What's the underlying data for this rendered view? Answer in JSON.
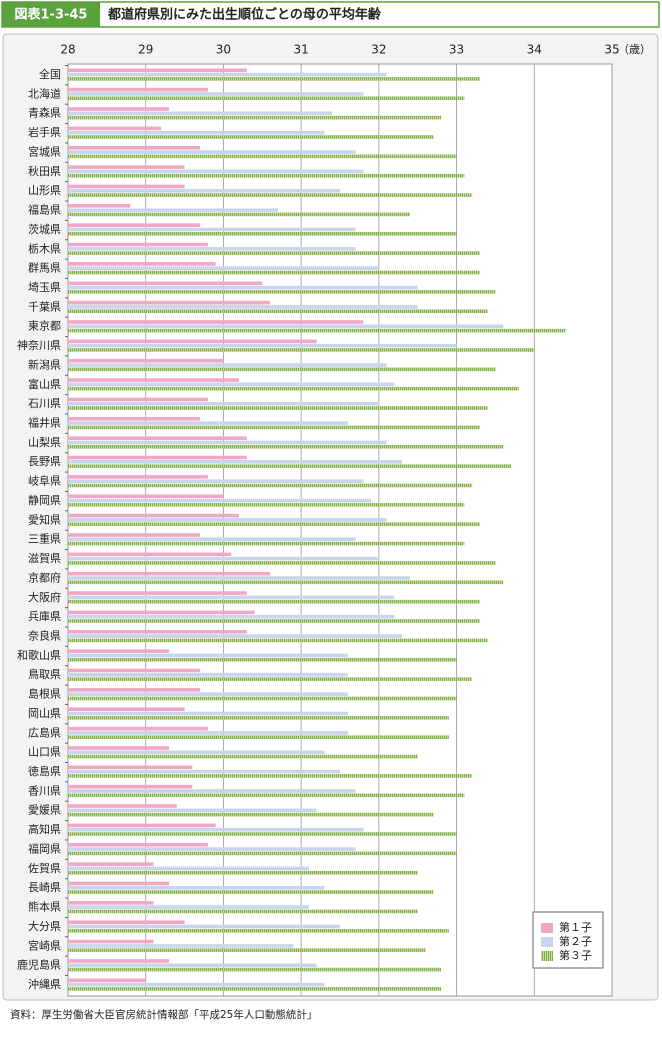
{
  "chart_data": {
    "type": "hbar",
    "figure_label": "図表1-3-45",
    "title": "都道府県別にみた出生順位ごとの母の平均年齢",
    "unit_label": "（歳）",
    "source": "資料：厚生労働省大臣官房統計情報部「平成25年人口動態統計」",
    "xlim": [
      28,
      35
    ],
    "xticks": [
      28,
      29,
      30,
      31,
      32,
      33,
      34,
      35
    ],
    "grid": true,
    "legend": "bottom-right",
    "categories": [
      "全国",
      "北海道",
      "青森県",
      "岩手県",
      "宮城県",
      "秋田県",
      "山形県",
      "福島県",
      "茨城県",
      "栃木県",
      "群馬県",
      "埼玉県",
      "千葉県",
      "東京都",
      "神奈川県",
      "新潟県",
      "富山県",
      "石川県",
      "福井県",
      "山梨県",
      "長野県",
      "岐阜県",
      "静岡県",
      "愛知県",
      "三重県",
      "滋賀県",
      "京都府",
      "大阪府",
      "兵庫県",
      "奈良県",
      "和歌山県",
      "鳥取県",
      "島根県",
      "岡山県",
      "広島県",
      "山口県",
      "徳島県",
      "香川県",
      "愛媛県",
      "高知県",
      "福岡県",
      "佐賀県",
      "長崎県",
      "熊本県",
      "大分県",
      "宮崎県",
      "鹿児島県",
      "沖縄県"
    ],
    "series": [
      {
        "name": "第１子",
        "color": "#f0a8c6",
        "values": [
          30.3,
          29.8,
          29.3,
          29.2,
          29.7,
          29.5,
          29.5,
          28.8,
          29.7,
          29.8,
          29.9,
          30.5,
          30.6,
          31.8,
          31.2,
          30.0,
          30.2,
          29.8,
          29.7,
          30.3,
          30.3,
          29.8,
          30.0,
          30.2,
          29.7,
          30.1,
          30.6,
          30.3,
          30.4,
          30.3,
          29.3,
          29.7,
          29.7,
          29.5,
          29.8,
          29.3,
          29.6,
          29.6,
          29.4,
          29.9,
          29.8,
          29.1,
          29.3,
          29.1,
          29.5,
          29.1,
          29.3,
          29.0
        ]
      },
      {
        "name": "第２子",
        "color": "#c9d5ec",
        "values": [
          32.1,
          31.8,
          31.4,
          31.3,
          31.7,
          31.8,
          31.5,
          30.7,
          31.7,
          31.7,
          32.0,
          32.5,
          32.5,
          33.6,
          33.0,
          32.1,
          32.2,
          32.0,
          31.6,
          32.1,
          32.3,
          31.8,
          31.9,
          32.1,
          31.7,
          32.0,
          32.4,
          32.2,
          32.2,
          32.3,
          31.6,
          31.6,
          31.6,
          31.6,
          31.6,
          31.3,
          31.5,
          31.7,
          31.2,
          31.8,
          31.7,
          31.1,
          31.3,
          31.1,
          31.5,
          30.9,
          31.2,
          31.3
        ]
      },
      {
        "name": "第３子",
        "color": "#7fae3e",
        "values": [
          33.3,
          33.1,
          32.8,
          32.7,
          33.0,
          33.1,
          33.2,
          32.4,
          33.0,
          33.3,
          33.3,
          33.5,
          33.4,
          34.4,
          34.0,
          33.5,
          33.8,
          33.4,
          33.3,
          33.6,
          33.7,
          33.2,
          33.1,
          33.3,
          33.1,
          33.5,
          33.6,
          33.3,
          33.3,
          33.4,
          33.0,
          33.2,
          33.0,
          32.9,
          32.9,
          32.5,
          33.2,
          33.1,
          32.7,
          33.0,
          33.0,
          32.5,
          32.7,
          32.5,
          32.9,
          32.6,
          32.8,
          32.8
        ]
      }
    ]
  }
}
